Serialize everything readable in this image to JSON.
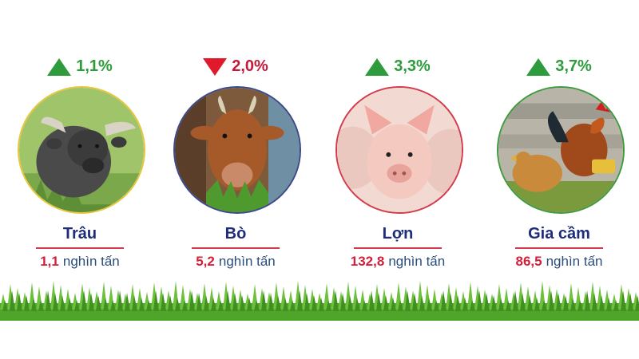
{
  "items": [
    {
      "change": "1,1%",
      "direction": "up",
      "name": "Trâu",
      "value": "1,1",
      "unit": "nghìn tấn",
      "icon": "buffalo-photo"
    },
    {
      "change": "2,0%",
      "direction": "down",
      "name": "Bò",
      "value": "5,2",
      "unit": "nghìn tấn",
      "icon": "cow-photo"
    },
    {
      "change": "3,3%",
      "direction": "up",
      "name": "Lợn",
      "value": "132,8",
      "unit": "nghìn tấn",
      "icon": "pig-photo"
    },
    {
      "change": "3,7%",
      "direction": "up",
      "name": "Gia cầm",
      "value": "86,5",
      "unit": "nghìn tấn",
      "icon": "poultry-photo"
    }
  ],
  "colors": {
    "up": "#2e9b3c",
    "down": "#e0192b",
    "name": "#1e2c7a",
    "value": "#d1203a",
    "unit": "#2a4d7a"
  }
}
